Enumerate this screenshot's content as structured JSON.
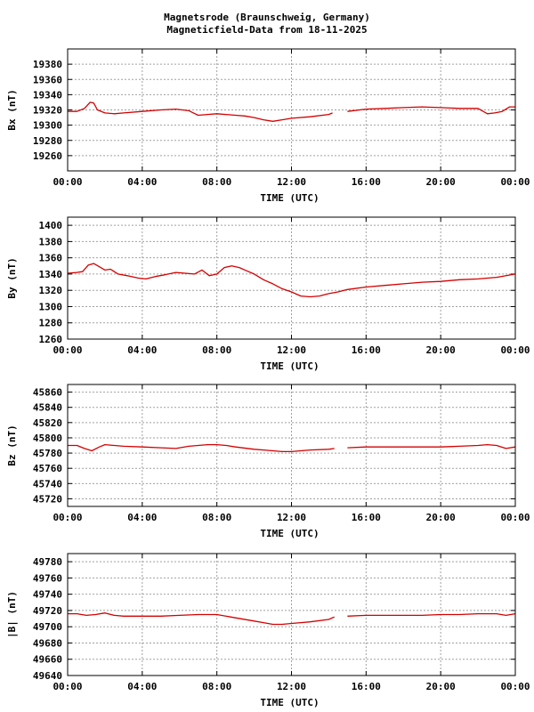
{
  "header": {
    "title_line1": "Magnetsrode (Braunschweig, Germany)",
    "title_line2": "Magneticfield-Data from 18-11-2025"
  },
  "colors": {
    "series": "#d40000",
    "grid": "#a0a0a0",
    "axis": "#000000",
    "background": "#ffffff"
  },
  "chart_data": [
    {
      "type": "line",
      "ylabel": "Bx (nT)",
      "xlabel": "TIME (UTC)",
      "xlim": [
        0,
        24
      ],
      "ylim": [
        19240,
        19400
      ],
      "yticks": [
        19260,
        19280,
        19300,
        19320,
        19340,
        19360,
        19380
      ],
      "xtick_labels": [
        "00:00",
        "04:00",
        "08:00",
        "12:00",
        "16:00",
        "20:00",
        "00:00"
      ],
      "grid": true,
      "series": [
        {
          "x": [
            0,
            0.5,
            0.9,
            1.2,
            1.4,
            1.6,
            2.0,
            2.5,
            3.0,
            4.0,
            5.0,
            5.8,
            6.5,
            7.0,
            7.5,
            8.0,
            9.0,
            9.5,
            10.0,
            10.5,
            11.0,
            11.5,
            12.0,
            13.0,
            14.0,
            14.2,
            15.0,
            16.0,
            17.0,
            18.0,
            19.0,
            20.0,
            21.0,
            21.5,
            22.0,
            22.5,
            22.9,
            23.3,
            23.7,
            24.0
          ],
          "y": [
            19318,
            19318,
            19322,
            19330,
            19329,
            19320,
            19316,
            19315,
            19316,
            19318,
            19320,
            19321,
            19319,
            19313,
            19314,
            19315,
            19313,
            19312,
            19310,
            19307,
            19305,
            19307,
            19309,
            19311,
            19314,
            19316,
            19318,
            19321,
            19322,
            19323,
            19324,
            19323,
            19322,
            19322,
            19322,
            19315,
            19316,
            19318,
            19324,
            19324
          ],
          "gaps_after_x": [
            14.2
          ]
        }
      ]
    },
    {
      "type": "line",
      "ylabel": "By (nT)",
      "xlabel": "TIME (UTC)",
      "xlim": [
        0,
        24
      ],
      "ylim": [
        1260,
        1410
      ],
      "yticks": [
        1260,
        1280,
        1300,
        1320,
        1340,
        1360,
        1380,
        1400
      ],
      "xtick_labels": [
        "00:00",
        "04:00",
        "08:00",
        "12:00",
        "16:00",
        "20:00",
        "00:00"
      ],
      "grid": true,
      "series": [
        {
          "x": [
            0,
            0.5,
            0.8,
            1.1,
            1.4,
            1.7,
            2.0,
            2.3,
            2.7,
            3.2,
            3.8,
            4.2,
            4.7,
            5.2,
            5.8,
            6.3,
            6.8,
            7.2,
            7.6,
            8.0,
            8.4,
            8.8,
            9.2,
            9.6,
            10.0,
            10.5,
            11.0,
            11.5,
            12.0,
            12.5,
            13.0,
            13.5,
            14.0,
            14.5,
            15.0,
            16.0,
            17.0,
            18.0,
            19.0,
            20.0,
            21.0,
            22.0,
            23.0,
            24.0
          ],
          "y": [
            1341,
            1342,
            1343,
            1351,
            1353,
            1349,
            1345,
            1346,
            1340,
            1338,
            1335,
            1334,
            1337,
            1339,
            1342,
            1341,
            1340,
            1345,
            1338,
            1340,
            1348,
            1350,
            1348,
            1344,
            1340,
            1333,
            1328,
            1322,
            1318,
            1313,
            1312,
            1313,
            1316,
            1318,
            1321,
            1324,
            1326,
            1328,
            1330,
            1331,
            1333,
            1334,
            1336,
            1340
          ],
          "gaps_after_x": []
        }
      ]
    },
    {
      "type": "line",
      "ylabel": "Bz (nT)",
      "xlabel": "TIME (UTC)",
      "xlim": [
        0,
        24
      ],
      "ylim": [
        45710,
        45870
      ],
      "yticks": [
        45720,
        45740,
        45760,
        45780,
        45800,
        45820,
        45840,
        45860
      ],
      "xtick_labels": [
        "00:00",
        "04:00",
        "08:00",
        "12:00",
        "16:00",
        "20:00",
        "00:00"
      ],
      "grid": true,
      "series": [
        {
          "x": [
            0,
            0.5,
            0.9,
            1.3,
            1.7,
            2.0,
            2.5,
            3.0,
            4.0,
            5.0,
            5.8,
            6.5,
            7.0,
            7.5,
            8.0,
            8.5,
            9.0,
            10.0,
            10.5,
            11.0,
            11.5,
            12.0,
            12.5,
            13.0,
            14.0,
            14.3,
            15.0,
            16.0,
            17.0,
            18.0,
            19.0,
            20.0,
            21.0,
            22.0,
            22.5,
            23.0,
            23.5,
            24.0
          ],
          "y": [
            45790,
            45790,
            45786,
            45783,
            45788,
            45791,
            45790,
            45789,
            45788,
            45787,
            45786,
            45789,
            45790,
            45791,
            45791,
            45790,
            45788,
            45785,
            45784,
            45783,
            45782,
            45782,
            45783,
            45784,
            45785,
            45786,
            45787,
            45788,
            45788,
            45788,
            45788,
            45788,
            45789,
            45790,
            45791,
            45790,
            45786,
            45788
          ],
          "gaps_after_x": [
            14.3
          ]
        }
      ]
    },
    {
      "type": "line",
      "ylabel": "|B| (nT)",
      "xlabel": "TIME (UTC)",
      "xlim": [
        0,
        24
      ],
      "ylim": [
        49640,
        49790
      ],
      "yticks": [
        49640,
        49660,
        49680,
        49700,
        49720,
        49740,
        49760,
        49780
      ],
      "xtick_labels": [
        "00:00",
        "04:00",
        "08:00",
        "12:00",
        "16:00",
        "20:00",
        "00:00"
      ],
      "grid": true,
      "series": [
        {
          "x": [
            0,
            0.5,
            1.0,
            1.5,
            2.0,
            2.5,
            3.0,
            4.0,
            5.0,
            6.0,
            7.0,
            8.0,
            9.0,
            10.0,
            10.5,
            11.0,
            11.5,
            12.0,
            12.5,
            13.0,
            14.0,
            14.3,
            15.0,
            16.0,
            17.0,
            18.0,
            19.0,
            20.0,
            21.0,
            22.0,
            22.5,
            23.0,
            23.5,
            24.0
          ],
          "y": [
            49716,
            49716,
            49714,
            49715,
            49717,
            49714,
            49713,
            49713,
            49713,
            49714,
            49715,
            49715,
            49711,
            49707,
            49705,
            49703,
            49703,
            49704,
            49705,
            49706,
            49709,
            49712,
            49713,
            49714,
            49714,
            49714,
            49714,
            49715,
            49715,
            49716,
            49716,
            49716,
            49714,
            49716
          ],
          "gaps_after_x": [
            14.3
          ]
        }
      ]
    }
  ]
}
